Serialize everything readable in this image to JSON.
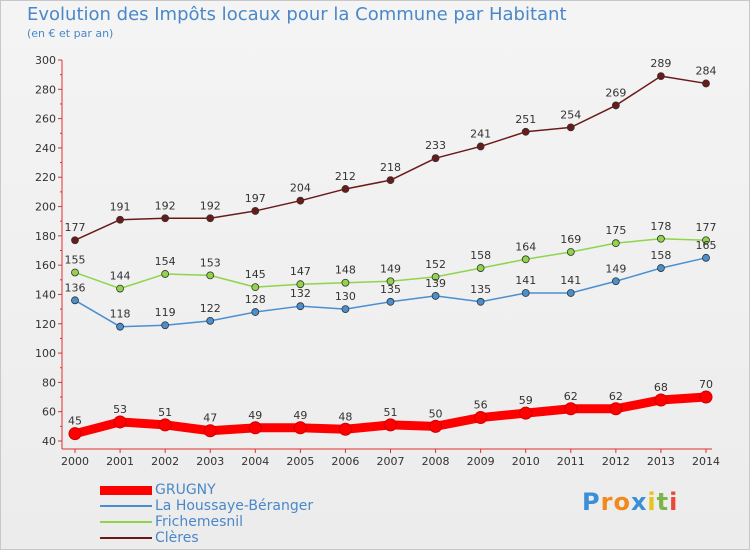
{
  "title": "Evolution des Impôts locaux pour la Commune par Habitant",
  "subtitle": "(en € et par an)",
  "logo": {
    "letters": [
      "P",
      "r",
      "o",
      "x",
      "i",
      "t",
      "i"
    ],
    "colors": [
      "#3a8fd6",
      "#f08a1c",
      "#f08a1c",
      "#3a8fd6",
      "#e8c31a",
      "#7ab648",
      "#e84a3a"
    ]
  },
  "chart_data": {
    "type": "line",
    "x": [
      "2000",
      "2001",
      "2002",
      "2003",
      "2004",
      "2005",
      "2006",
      "2007",
      "2008",
      "2009",
      "2010",
      "2011",
      "2012",
      "2013",
      "2014"
    ],
    "ylim": [
      40,
      300
    ],
    "yticks": [
      40,
      60,
      80,
      100,
      120,
      140,
      160,
      180,
      200,
      220,
      240,
      260,
      280,
      300
    ],
    "grid": false,
    "legend_position": "bottom-left",
    "series": [
      {
        "name": "GRUGNY",
        "color": "#ff0000",
        "values": [
          45,
          53,
          51,
          47,
          49,
          49,
          48,
          51,
          50,
          56,
          59,
          62,
          62,
          68,
          70
        ],
        "labels": [
          "45",
          "53",
          "51",
          "47",
          "49",
          "49",
          "48",
          "51",
          "50",
          "56",
          "59",
          "62",
          "62",
          "68",
          "70"
        ]
      },
      {
        "name": "La Houssaye-Béranger",
        "color": "#4a8fcf",
        "values": [
          136,
          118,
          119,
          122,
          128,
          132,
          130,
          135,
          139,
          135,
          141,
          141,
          149,
          158,
          165
        ],
        "labels": [
          "136",
          "118",
          "119",
          "122",
          "128",
          "132",
          "130",
          "135",
          "139",
          "135",
          "141",
          "141",
          "149",
          "158",
          "165"
        ]
      },
      {
        "name": "Frichemesnil",
        "color": "#8fd44a",
        "values": [
          155,
          144,
          154,
          153,
          145,
          147,
          148,
          149,
          152,
          158,
          164,
          169,
          175,
          178,
          177
        ],
        "labels": [
          "155",
          "144",
          "154",
          "153",
          "145",
          "147",
          "148",
          "149",
          "152",
          "158",
          "164",
          "169",
          "175",
          "178",
          "177"
        ]
      },
      {
        "name": "Clères",
        "color": "#6b1a1a",
        "values": [
          177,
          191,
          192,
          192,
          197,
          204,
          212,
          218,
          233,
          241,
          251,
          254,
          269,
          289,
          284
        ],
        "labels": [
          "177",
          "191",
          "192",
          "192",
          "197",
          "204",
          "212",
          "218",
          "233",
          "241",
          "251",
          "254",
          "269",
          "289",
          "284"
        ]
      }
    ]
  }
}
